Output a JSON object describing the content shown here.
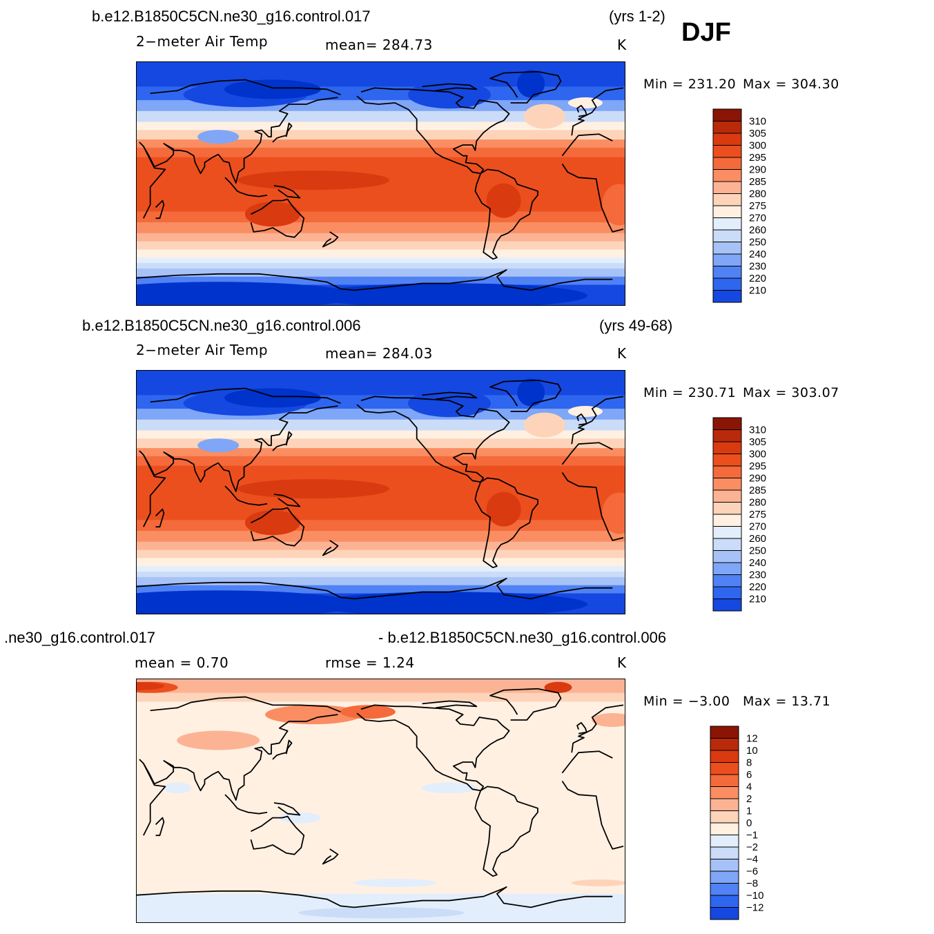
{
  "season": "DJF",
  "colors": {
    "abs_scale": [
      "#00008a",
      "#001fb0",
      "#0033cc",
      "#1548e0",
      "#2e66f0",
      "#5082f5",
      "#7fa6f7",
      "#a7c2f7",
      "#cadcf8",
      "#e2eefb",
      "#fff0e2",
      "#fdd4ba",
      "#fcb394",
      "#fa8e62",
      "#f46a3a",
      "#ec4f1e",
      "#da3a10",
      "#b82a0a",
      "#8a1505"
    ],
    "diff_scale": [
      "#00008a",
      "#001fb0",
      "#0033cc",
      "#1548e0",
      "#2e66f0",
      "#5082f5",
      "#7fa6f7",
      "#a7c2f7",
      "#cadcf8",
      "#e2eefb",
      "#fff0e2",
      "#fdd4ba",
      "#fcb394",
      "#fa8e62",
      "#f46a3a",
      "#ec4f1e",
      "#da3a10",
      "#b82a0a",
      "#8a1505"
    ],
    "coast": "#000000"
  },
  "panels": [
    {
      "case": "b.e12.B1850C5CN.ne30_g16.control.017",
      "years": "(yrs 1-2)",
      "variable": "2−meter Air Temp",
      "stat_text": "mean=  284.73",
      "units": "K",
      "min_text": "Min  =  231.20",
      "max_text": "Max  =  304.30",
      "cbar_labels": [
        "310",
        "305",
        "300",
        "295",
        "290",
        "285",
        "280",
        "275",
        "270",
        "260",
        "250",
        "240",
        "230",
        "220",
        "210"
      ],
      "scale": "abs"
    },
    {
      "case": "b.e12.B1850C5CN.ne30_g16.control.006",
      "years": "(yrs 49-68)",
      "variable": "2−meter Air Temp",
      "stat_text": "mean=  284.03",
      "units": "K",
      "min_text": "Min  =  230.71",
      "max_text": "Max  =  303.07",
      "cbar_labels": [
        "310",
        "305",
        "300",
        "295",
        "290",
        "285",
        "280",
        "275",
        "270",
        "260",
        "250",
        "240",
        "230",
        "220",
        "210"
      ],
      "scale": "abs"
    },
    {
      "case": ".ne30_g16.control.017",
      "case2": "- b.e12.B1850C5CN.ne30_g16.control.006",
      "stat_text": "mean  =     0.70",
      "stat2_text": "rmse  =     1.24",
      "units": "K",
      "min_text": "Min  =    −3.00",
      "max_text": "Max  =    13.71",
      "cbar_labels": [
        "12",
        "10",
        "8",
        "6",
        "4",
        "2",
        "1",
        "0",
        "−1",
        "−2",
        "−4",
        "−6",
        "−8",
        "−10",
        "−12"
      ],
      "scale": "diff"
    }
  ]
}
